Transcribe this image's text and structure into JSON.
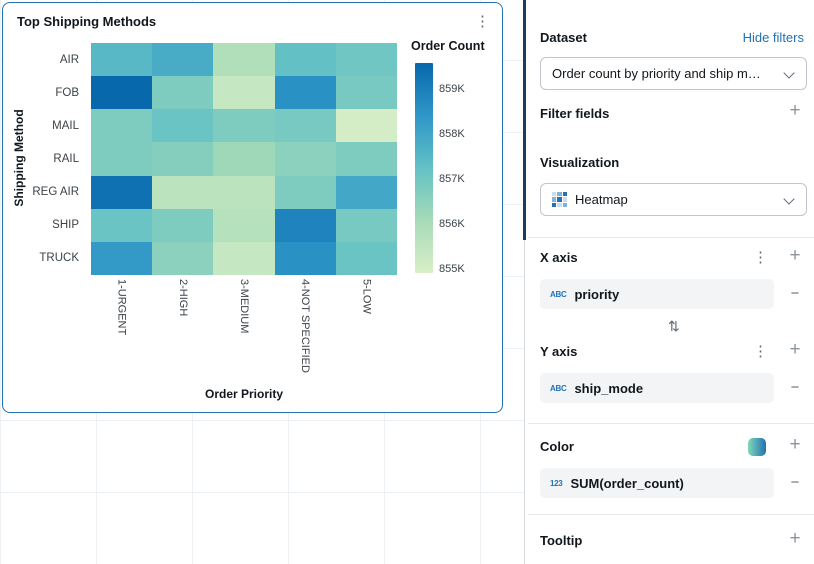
{
  "colors": {
    "accent": "#2272b4",
    "card_border": "#2272b4",
    "link": "#2272b4",
    "divider_handle": "#1d3d5c"
  },
  "card": {
    "title": "Top Shipping Methods",
    "menu_icon": "kebab-menu"
  },
  "chart_data": {
    "type": "heatmap",
    "title": "Top Shipping Methods",
    "xlabel": "Order Priority",
    "ylabel": "Shipping Method",
    "x_categories": [
      "1-URGENT",
      "2-HIGH",
      "3-MEDIUM",
      "4-NOT SPECIFIED",
      "5-LOW"
    ],
    "y_categories": [
      "AIR",
      "FOB",
      "MAIL",
      "RAIL",
      "REG AIR",
      "SHIP",
      "TRUCK"
    ],
    "unit": "K",
    "values_k": [
      [
        857.2,
        857.5,
        855.8,
        857.0,
        856.8
      ],
      [
        859.0,
        856.6,
        855.4,
        858.1,
        856.7
      ],
      [
        856.6,
        856.9,
        856.6,
        856.7,
        855.1
      ],
      [
        856.6,
        856.5,
        856.1,
        856.4,
        856.6
      ],
      [
        858.8,
        855.6,
        855.6,
        856.6,
        857.6
      ],
      [
        856.9,
        856.6,
        855.7,
        858.4,
        856.7
      ],
      [
        857.9,
        856.4,
        855.4,
        858.1,
        856.9
      ]
    ],
    "legend": {
      "title": "Order Count",
      "ticks": [
        "859K",
        "858K",
        "857K",
        "856K",
        "855K"
      ],
      "min_k": 855,
      "max_k": 859,
      "position": "right"
    },
    "color_scale": [
      "#d9efc8",
      "#a6dbb7",
      "#63c1c5",
      "#2e96c8",
      "#0868ac"
    ]
  },
  "panel": {
    "dataset": {
      "label": "Dataset",
      "link": "Hide filters",
      "value": "Order count by priority and ship m…"
    },
    "filter_fields": {
      "label": "Filter fields"
    },
    "visualization": {
      "label": "Visualization",
      "value": "Heatmap"
    },
    "x_axis": {
      "label": "X axis",
      "field": "priority",
      "type_icon": "ABC"
    },
    "y_axis": {
      "label": "Y axis",
      "field": "ship_mode",
      "type_icon": "ABC"
    },
    "color": {
      "label": "Color",
      "field": "SUM(order_count)",
      "type_icon": "123",
      "swatch": [
        "#7fd8b8",
        "#2272b4"
      ]
    },
    "tooltip": {
      "label": "Tooltip"
    }
  }
}
